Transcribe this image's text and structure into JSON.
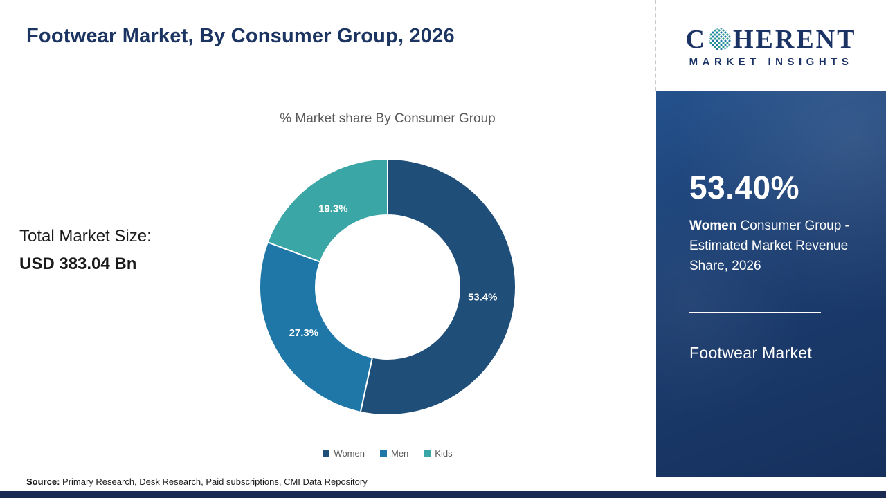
{
  "header": {
    "title": "Footwear Market, By Consumer Group, 2026"
  },
  "logo": {
    "part1": "C",
    "part2": "HERENT",
    "subtitle": "MARKET INSIGHTS"
  },
  "chart_data": {
    "type": "pie",
    "donut": true,
    "title": "% Market share By Consumer Group",
    "categories": [
      "Women",
      "Men",
      "Kids"
    ],
    "values": [
      53.4,
      27.3,
      19.3
    ],
    "labels": [
      "53.4%",
      "27.3%",
      "19.3%"
    ],
    "colors": [
      "#1F4E79",
      "#1F77A8",
      "#3AA6A6"
    ],
    "start_angle_deg": 0,
    "legend_position": "bottom"
  },
  "market_size": {
    "label": "Total Market Size:",
    "value": "USD 383.04 Bn"
  },
  "sidebar": {
    "share_value": "53.40%",
    "description_bold": "Women",
    "description_rest": " Consumer Group - Estimated Market Revenue Share, 2026",
    "market_name": "Footwear Market"
  },
  "source": {
    "label": "Source:",
    "text": " Primary Research, Desk Research, Paid subscriptions, CMI Data Repository"
  }
}
